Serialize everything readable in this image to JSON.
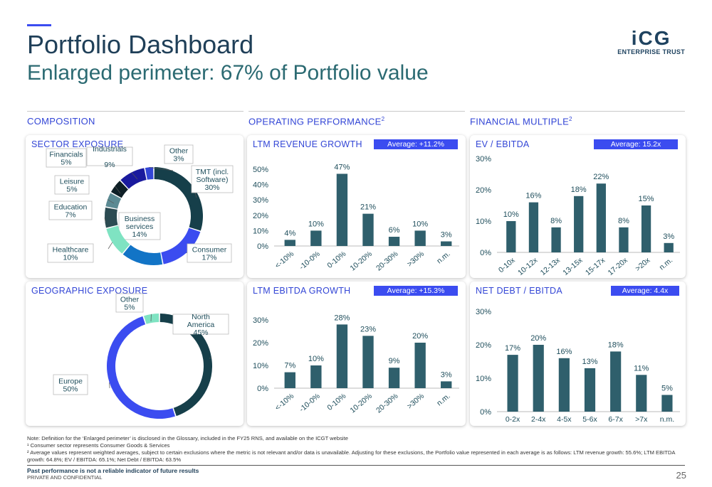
{
  "header": {
    "title": "Portfolio Dashboard",
    "subtitle": "Enlarged perimeter: 67% of Portfolio value",
    "logo_big": "iCG",
    "logo_small": "ENTERPRISE TRUST"
  },
  "sections": {
    "composition": "COMPOSITION",
    "operating": "OPERATING PERFORMANCE",
    "operating_sup": "2",
    "multiple": "FINANCIAL MULTIPLE",
    "multiple_sup": "2"
  },
  "colors": {
    "accent": "#3b4cf0",
    "bar": "#2f5f6c",
    "heading": "#3346d6"
  },
  "chart_data": [
    {
      "id": "sector",
      "type": "pie",
      "title": "SECTOR EXPOSURE",
      "slices": [
        {
          "label": "TMT (incl. Software)",
          "value": 30,
          "color": "#163f4a"
        },
        {
          "label": "Consumer",
          "value": 17,
          "color": "#3b4cf0"
        },
        {
          "label": "Business services",
          "value": 14,
          "color": "#1274c6"
        },
        {
          "label": "Healthcare",
          "value": 10,
          "color": "#7fe3c2"
        },
        {
          "label": "Education",
          "value": 7,
          "color": "#2c4b52"
        },
        {
          "label": "Leisure",
          "value": 5,
          "color": "#5b8a93"
        },
        {
          "label": "Financials",
          "value": 5,
          "color": "#0e1f26"
        },
        {
          "label": "Industrials",
          "value": 9,
          "color": "#1a1a9e"
        },
        {
          "label": "Other",
          "value": 3,
          "color": "#3346d6"
        }
      ]
    },
    {
      "id": "geo",
      "type": "pie",
      "title": "GEOGRAPHIC EXPOSURE",
      "slices": [
        {
          "label": "North America",
          "value": 45,
          "color": "#163f4a"
        },
        {
          "label": "Europe",
          "value": 50,
          "color": "#3b4cf0"
        },
        {
          "label": "Other",
          "value": 5,
          "color": "#7fe3c2"
        }
      ]
    },
    {
      "id": "rev",
      "type": "bar",
      "title": "LTM REVENUE GROWTH",
      "average": "Average: +11.2%",
      "categories": [
        "<-10%",
        "-10-0%",
        "0-10%",
        "10-20%",
        "20-30%",
        ">30%",
        "n.m."
      ],
      "values": [
        4,
        10,
        47,
        21,
        6,
        10,
        3
      ],
      "yticks": [
        "0%",
        "10%",
        "20%",
        "30%",
        "40%",
        "50%"
      ],
      "ylim": [
        0,
        50
      ]
    },
    {
      "id": "ebitda",
      "type": "bar",
      "title": "LTM EBITDA GROWTH",
      "average": "Average: +15.3%",
      "categories": [
        "<-10%",
        "-10-0%",
        "0-10%",
        "10-20%",
        "20-30%",
        ">30%",
        "n.m."
      ],
      "values": [
        7,
        10,
        28,
        23,
        9,
        20,
        3
      ],
      "yticks": [
        "0%",
        "10%",
        "20%",
        "30%"
      ],
      "ylim": [
        0,
        30
      ]
    },
    {
      "id": "ev",
      "type": "bar",
      "title": "EV / EBITDA",
      "average": "Average: 15.2x",
      "categories": [
        "0-10x",
        "10-12x",
        "12-13x",
        "13-15x",
        "15-17x",
        "17-20x",
        ">20x",
        "n.m."
      ],
      "values": [
        10,
        16,
        8,
        18,
        22,
        8,
        15,
        3
      ],
      "yticks": [
        "0%",
        "10%",
        "20%",
        "30%"
      ],
      "ylim": [
        0,
        30
      ]
    },
    {
      "id": "debt",
      "type": "bar",
      "title": "NET DEBT / EBITDA",
      "average": "Average: 4.4x",
      "categories": [
        "0-2x",
        "2-4x",
        "4-5x",
        "5-6x",
        "6-7x",
        ">7x",
        "n.m."
      ],
      "values": [
        17,
        20,
        16,
        13,
        18,
        11,
        5
      ],
      "yticks": [
        "0%",
        "10%",
        "20%",
        "30%"
      ],
      "ylim": [
        0,
        30
      ]
    }
  ],
  "notes": {
    "line1": "Note: Definition for the ‘Enlarged perimeter’ is disclosed in the Glossary, included in the FY25 RNS, and available on the ICGT website",
    "line2": "¹ Consumer sector represents Consumer Goods & Services",
    "line3": "² Average values represent weighted averages, subject to certain exclusions where the metric is not relevant and/or data is unavailable. Adjusting for these exclusions, the Portfolio value represented in each average is as follows: LTM revenue growth: 55.6%; LTM EBITDA growth: 64.8%; EV / EBITDA: 65.1%; Net Debt / EBITDA: 63.5%"
  },
  "footer": {
    "disclaimer": "Past performance is not a reliable indicator of future results",
    "confidential": "PRIVATE AND CONFIDENTIAL",
    "page": "25"
  }
}
